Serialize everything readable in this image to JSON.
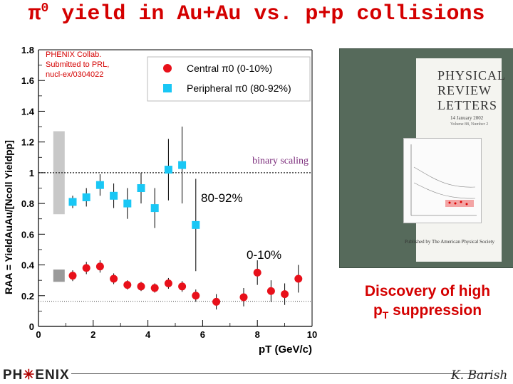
{
  "slide": {
    "title_pi": "π",
    "title_sup": "0",
    "title_rest": " yield in Au+Au vs. p+p collisions",
    "discovery_line1": "Discovery of high",
    "discovery_line2_p": "p",
    "discovery_line2_sub": "T",
    "discovery_line2_rest": " suppression",
    "logo_left": "PH",
    "logo_right": "ENIX",
    "author": "K. Barish"
  },
  "journal_cover": {
    "title_lines": [
      "PHYSICAL",
      "REVIEW",
      "LETTERS"
    ],
    "date": "14 January 2002",
    "volume": "Volume 88, Number 2",
    "publisher": "Published by The American Physical Society"
  },
  "chart_data": {
    "type": "scatter",
    "title": "",
    "xlabel": "pT (GeV/c)",
    "ylabel": "RAA = YieldAuAu/[Ncoll Yieldpp]",
    "xlim": [
      0,
      10
    ],
    "ylim": [
      0,
      1.8
    ],
    "xticks": [
      0,
      2,
      4,
      6,
      8,
      10
    ],
    "yticks": [
      0,
      0.2,
      0.4,
      0.6,
      0.8,
      1,
      1.2,
      1.4,
      1.6,
      1.8
    ],
    "source_note": [
      "PHENIX Collab.",
      "Submitted to PRL,",
      "nucl-ex/0304022"
    ],
    "reference_line": {
      "y": 1.0,
      "label": "binary scaling"
    },
    "annotations": [
      "80-92%",
      "0-10%"
    ],
    "series": [
      {
        "name": "Central π0 (0-10%)",
        "marker": "circle",
        "color": "#e8101a",
        "x": [
          1.25,
          1.75,
          2.25,
          2.75,
          3.25,
          3.75,
          4.25,
          4.75,
          5.25,
          5.75,
          6.5,
          7.5,
          8.0,
          8.5,
          9.0,
          9.5
        ],
        "y": [
          0.33,
          0.38,
          0.39,
          0.31,
          0.27,
          0.26,
          0.25,
          0.28,
          0.26,
          0.2,
          0.16,
          0.19,
          0.35,
          0.23,
          0.21,
          0.31
        ],
        "err": [
          0.035,
          0.04,
          0.04,
          0.035,
          0.03,
          0.03,
          0.03,
          0.035,
          0.035,
          0.04,
          0.05,
          0.06,
          0.08,
          0.07,
          0.07,
          0.09
        ]
      },
      {
        "name": "Peripheral π0 (80-92%)",
        "marker": "square",
        "color": "#19c7f5",
        "x": [
          1.25,
          1.75,
          2.25,
          2.75,
          3.25,
          3.75,
          4.25,
          4.75,
          5.25,
          5.75
        ],
        "y": [
          0.81,
          0.84,
          0.92,
          0.85,
          0.8,
          0.9,
          0.77,
          1.02,
          1.05,
          0.66
        ],
        "err": [
          0.04,
          0.06,
          0.07,
          0.08,
          0.1,
          0.1,
          0.13,
          0.2,
          0.25,
          0.3
        ]
      }
    ],
    "systematic_bands": [
      {
        "x": 0.75,
        "ymin": 0.73,
        "ymax": 1.27,
        "color": "#c8c8c8"
      },
      {
        "x": 0.75,
        "ymin": 0.29,
        "ymax": 0.37,
        "color": "#9a9a9a"
      }
    ],
    "grid": false,
    "legend_position": "top-right"
  }
}
